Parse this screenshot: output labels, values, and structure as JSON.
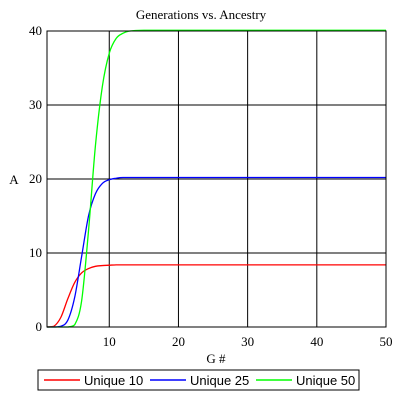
{
  "chart_data": {
    "type": "line",
    "title": "Generations vs. Ancestry",
    "xlabel": "G #",
    "ylabel": "A",
    "xlim": [
      1,
      50
    ],
    "ylim": [
      0,
      40
    ],
    "xticks": [
      "10",
      "20",
      "30",
      "40",
      "50"
    ],
    "yticks": [
      "0",
      "10",
      "20",
      "30",
      "40"
    ],
    "grid": true,
    "legend_position": "bottom",
    "series": [
      {
        "name": "Unique 10",
        "color": "#ff0000",
        "x": [
          1,
          2,
          3,
          4,
          5,
          6,
          7,
          8,
          9,
          10,
          11,
          12,
          15,
          20,
          30,
          40,
          50
        ],
        "y": [
          0,
          0.1,
          1.3,
          3.8,
          6.0,
          7.3,
          7.9,
          8.2,
          8.3,
          8.35,
          8.4,
          8.4,
          8.4,
          8.4,
          8.4,
          8.4,
          8.4
        ]
      },
      {
        "name": "Unique 25",
        "color": "#0000ff",
        "x": [
          1,
          2,
          3,
          4,
          5,
          6,
          7,
          8,
          9,
          10,
          11,
          12,
          15,
          20,
          30,
          40,
          50
        ],
        "y": [
          0,
          0,
          0.1,
          0.9,
          4.0,
          9.5,
          15.0,
          18.0,
          19.4,
          19.9,
          20.1,
          20.2,
          20.2,
          20.2,
          20.2,
          20.2,
          20.2
        ]
      },
      {
        "name": "Unique 50",
        "color": "#00ff00",
        "x": [
          1,
          2,
          3,
          4,
          5,
          6,
          7,
          8,
          9,
          10,
          11,
          12,
          13,
          15,
          20,
          30,
          40,
          50
        ],
        "y": [
          0,
          0,
          0,
          0,
          0.3,
          3.5,
          13.0,
          24.5,
          32.5,
          37.0,
          39.0,
          39.7,
          40.0,
          40.1,
          40.1,
          40.1,
          40.1,
          40.1
        ]
      }
    ]
  }
}
